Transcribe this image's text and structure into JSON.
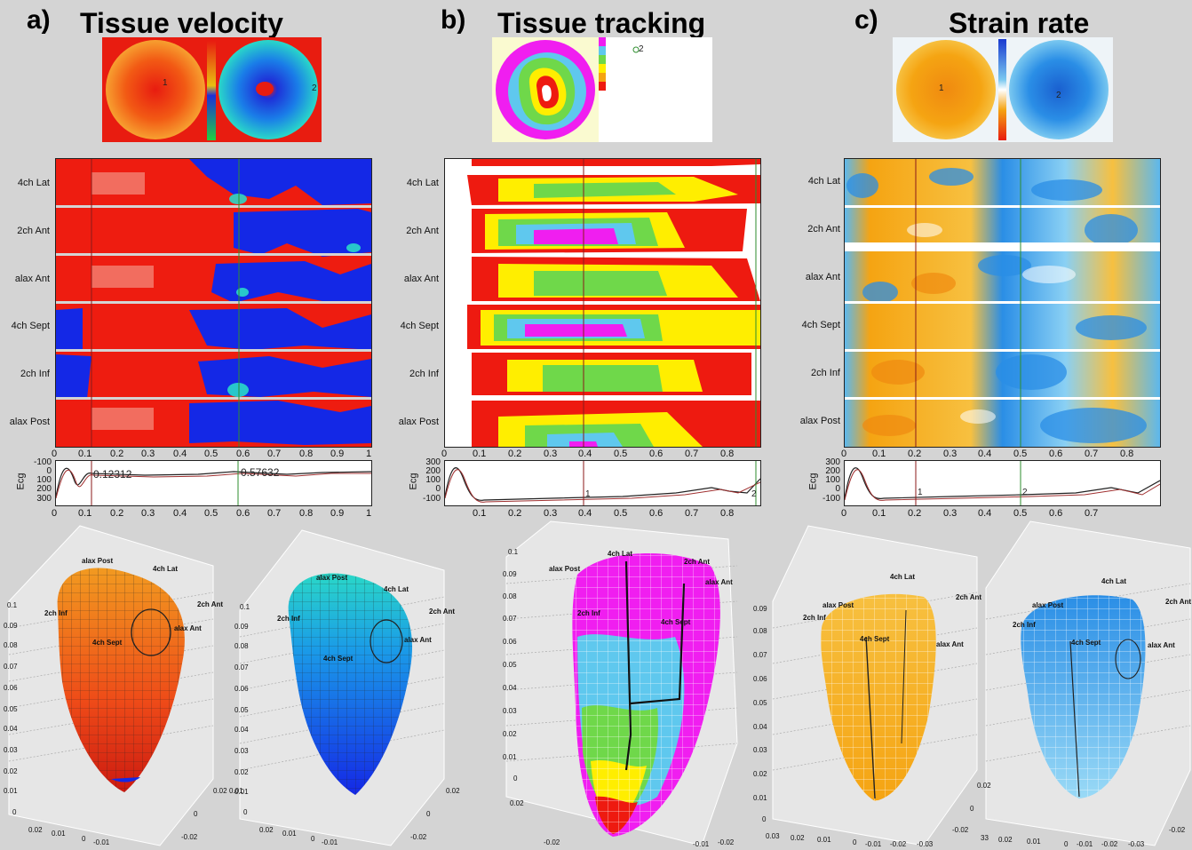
{
  "panels": [
    {
      "letter": "a)",
      "title": "Tissue velocity"
    },
    {
      "letter": "b)",
      "title": "Tissue tracking"
    },
    {
      "letter": "c)",
      "title": "Strain rate"
    }
  ],
  "segments": [
    "4ch Lat",
    "2ch Ant",
    "alax Ant",
    "4ch Sept",
    "2ch Inf",
    "alax Post"
  ],
  "x_ticks_a": [
    "0",
    "0.1",
    "0.2",
    "0.3",
    "0.4",
    "0.5",
    "0.6",
    "0.7",
    "0.8",
    "0.9",
    "1"
  ],
  "x_ticks_bc": [
    "0",
    "0.1",
    "0.2",
    "0.3",
    "0.4",
    "0.5",
    "0.6",
    "0.7",
    "0.8"
  ],
  "x_ticks_a_ecg": [
    "0",
    "0.1",
    "0.2",
    "0.3",
    "0.4",
    "0.5",
    "0.6",
    "0.7",
    "0.8",
    "0.9",
    "1"
  ],
  "ecg": {
    "ylabel": "Ecg",
    "a_yticks": [
      "-100",
      "0",
      "100",
      "200",
      "300"
    ],
    "bc_yticks": [
      "300",
      "200",
      "100",
      "0",
      "-100"
    ],
    "a_markers": [
      "0.12312",
      "0.57632"
    ],
    "b_markers": [
      "1",
      "2"
    ],
    "c_markers": [
      "1",
      "2"
    ]
  },
  "bullseye_markers": {
    "a1": "1",
    "a2": "2",
    "b2": "2",
    "c1": "1",
    "c2": "2"
  },
  "heart_labels": {
    "alax_post": "alax Post",
    "ch4_lat": "4ch Lat",
    "ch2_ant": "2ch Ant",
    "ch2_inf": "2ch Inf",
    "alax_ant": "alax Ant",
    "ch4_sept": "4ch Sept"
  },
  "heart_yticks_a": [
    "0.1",
    "0.09",
    "0.08",
    "0.07",
    "0.06",
    "0.05",
    "0.04",
    "0.03",
    "0.02",
    "0.01",
    "0"
  ],
  "heart_yticks_b": [
    "0.1",
    "0.09",
    "0.08",
    "0.07",
    "0.06",
    "0.05",
    "0.04",
    "0.03",
    "0.02",
    "0.01",
    "0"
  ],
  "heart_yticks_c": [
    "0.09",
    "0.08",
    "0.07",
    "0.06",
    "0.05",
    "0.04",
    "0.03",
    "0.02",
    "0.01",
    "0"
  ],
  "heart_xticks": [
    "0.02",
    "0.01",
    "0",
    "-0.01",
    "-0.02"
  ],
  "heart_xticks_c": [
    "0.03",
    "0.02",
    "0.01",
    "0",
    "-0.01",
    "-0.02",
    "-0.03"
  ],
  "heart_depth_ticks": [
    "0.02",
    "0",
    "-0.02"
  ],
  "heart_side_ticks_a": [
    "0.02",
    "0.01"
  ],
  "heart_side_ticks_b": [
    "0.02"
  ],
  "heart_side_ticks_c": [
    "33",
    "0.02",
    "0.01"
  ],
  "colors": {
    "vel_red": "#ee1c10",
    "vel_blue": "#1428e6",
    "track_red": "#ee1a10",
    "track_yellow": "#ffee00",
    "track_green": "#6fd84a",
    "track_cyan": "#5fc8ee",
    "track_magenta": "#f01ef0",
    "strain_orange": "#f5a412",
    "strain_blue": "#2a8ee6"
  }
}
